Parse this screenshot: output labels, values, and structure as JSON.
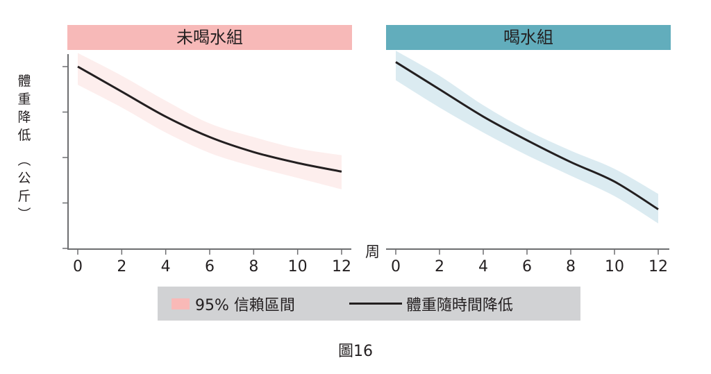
{
  "chart_data": {
    "type": "line",
    "title": "",
    "caption": "圖16",
    "xlabel": "周",
    "ylabel": "體重降低（公斤）",
    "ylabel_chars": [
      "體",
      "重",
      "降",
      "低"
    ],
    "ylabel_unit_chars": [
      "︵",
      "公",
      "斤",
      "︶"
    ],
    "x_ticks": [
      0,
      2,
      4,
      6,
      8,
      10,
      12
    ],
    "xlim": [
      0,
      12
    ],
    "y_ticks_labeled": false,
    "y_tick_count": 5,
    "grid": false,
    "legend_position": "bottom",
    "legend": [
      {
        "label": "95% 信賴區間",
        "type": "band",
        "color": "#f9b9b7"
      },
      {
        "label": "體重隨時間降低",
        "type": "line",
        "color": "#231f20"
      }
    ],
    "panels": [
      {
        "name": "未喝水組",
        "header_color": "#f7b9b8",
        "band_color": "#fdeeed",
        "x": [
          0,
          2,
          4,
          6,
          8,
          10,
          12
        ],
        "line_relative_units": [
          4.0,
          3.45,
          2.9,
          2.45,
          2.12,
          1.88,
          1.69
        ],
        "band_upper_relative_units": [
          4.3,
          3.8,
          3.25,
          2.75,
          2.45,
          2.2,
          2.05
        ],
        "band_lower_relative_units": [
          3.6,
          3.1,
          2.55,
          2.1,
          1.8,
          1.55,
          1.3
        ]
      },
      {
        "name": "喝水組",
        "header_color": "#62adbc",
        "band_color": "#dbebf1",
        "x": [
          0,
          2,
          4,
          6,
          8,
          10,
          12
        ],
        "line_relative_units": [
          4.1,
          3.5,
          2.9,
          2.38,
          1.9,
          1.47,
          0.86
        ],
        "band_upper_relative_units": [
          4.35,
          3.8,
          3.15,
          2.6,
          2.15,
          1.75,
          1.2
        ],
        "band_lower_relative_units": [
          3.7,
          3.1,
          2.55,
          2.05,
          1.6,
          1.15,
          0.55
        ]
      }
    ]
  },
  "headers": {
    "left": "未喝水組",
    "right": "喝水組"
  },
  "axis": {
    "x_unit": "周",
    "x_tick_labels": [
      "0",
      "2",
      "4",
      "6",
      "8",
      "10",
      "12"
    ]
  },
  "legend": {
    "band_label": "95% 信賴區間",
    "line_label": "體重隨時間降低"
  },
  "caption": "圖16",
  "colors": {
    "left_header": "#f7b9b8",
    "right_header": "#62adbc",
    "left_band": "#fdeeed",
    "right_band": "#dbebf1",
    "line": "#231f20",
    "legend_bg": "#d1d2d4",
    "legend_swatch": "#f9b9b7"
  }
}
